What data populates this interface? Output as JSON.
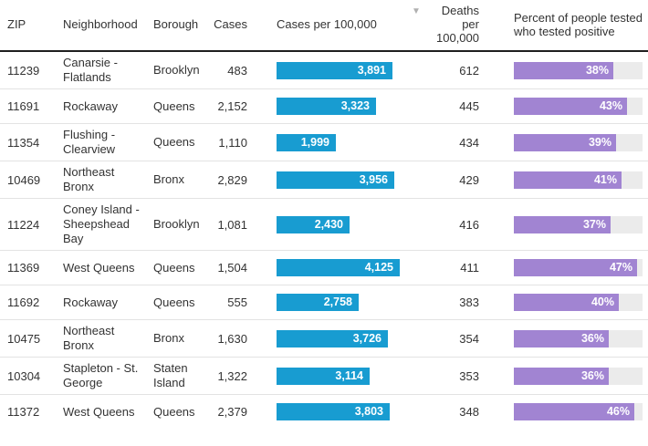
{
  "header": {
    "zip": "ZIP",
    "neighborhood": "Neighborhood",
    "borough": "Borough",
    "cases": "Cases",
    "cases_per_100k": "Cases per 100,000",
    "deaths_line1": "Deaths",
    "deaths_line2": "per 100,000",
    "percent_positive": "Percent of people tested who tested positive",
    "sort_icon": "▼",
    "sorted_column": "Deaths per 100,000",
    "sort_direction": "descending"
  },
  "chart_data": {
    "type": "table",
    "columns": [
      "ZIP",
      "Neighborhood",
      "Borough",
      "Cases",
      "Cases per 100,000",
      "Deaths per 100,000",
      "Percent of people tested who tested positive"
    ],
    "embedded_bars": [
      {
        "column": "Cases per 100,000",
        "type": "bar",
        "color": "#189cd1",
        "axis_max": 4125
      },
      {
        "column": "Percent of people tested who tested positive",
        "type": "bar",
        "color": "#a184d2",
        "track_color": "#ebebeb",
        "axis_max": 49
      }
    ],
    "rows": [
      {
        "zip": "11239",
        "neighborhood": "Canarsie - Flatlands",
        "borough": "Brooklyn",
        "cases_label": "483",
        "cases": 483,
        "cases_per_100k": 3891,
        "cases_per_100k_label": "3,891",
        "deaths_per_100k": 612,
        "deaths_label": "612",
        "percent_positive": 38,
        "percent_label": "38%"
      },
      {
        "zip": "11691",
        "neighborhood": "Rockaway",
        "borough": "Queens",
        "cases_label": "2,152",
        "cases": 2152,
        "cases_per_100k": 3323,
        "cases_per_100k_label": "3,323",
        "deaths_per_100k": 445,
        "deaths_label": "445",
        "percent_positive": 43,
        "percent_label": "43%"
      },
      {
        "zip": "11354",
        "neighborhood": "Flushing - Clearview",
        "borough": "Queens",
        "cases_label": "1,110",
        "cases": 1110,
        "cases_per_100k": 1999,
        "cases_per_100k_label": "1,999",
        "deaths_per_100k": 434,
        "deaths_label": "434",
        "percent_positive": 39,
        "percent_label": "39%"
      },
      {
        "zip": "10469",
        "neighborhood": "Northeast Bronx",
        "borough": "Bronx",
        "cases_label": "2,829",
        "cases": 2829,
        "cases_per_100k": 3956,
        "cases_per_100k_label": "3,956",
        "deaths_per_100k": 429,
        "deaths_label": "429",
        "percent_positive": 41,
        "percent_label": "41%"
      },
      {
        "zip": "11224",
        "neighborhood": "Coney Island - Sheepshead Bay",
        "borough": "Brooklyn",
        "cases_label": "1,081",
        "cases": 1081,
        "cases_per_100k": 2430,
        "cases_per_100k_label": "2,430",
        "deaths_per_100k": 416,
        "deaths_label": "416",
        "percent_positive": 37,
        "percent_label": "37%"
      },
      {
        "zip": "11369",
        "neighborhood": "West Queens",
        "borough": "Queens",
        "cases_label": "1,504",
        "cases": 1504,
        "cases_per_100k": 4125,
        "cases_per_100k_label": "4,125",
        "deaths_per_100k": 411,
        "deaths_label": "411",
        "percent_positive": 47,
        "percent_label": "47%"
      },
      {
        "zip": "11692",
        "neighborhood": "Rockaway",
        "borough": "Queens",
        "cases_label": "555",
        "cases": 555,
        "cases_per_100k": 2758,
        "cases_per_100k_label": "2,758",
        "deaths_per_100k": 383,
        "deaths_label": "383",
        "percent_positive": 40,
        "percent_label": "40%"
      },
      {
        "zip": "10475",
        "neighborhood": "Northeast Bronx",
        "borough": "Bronx",
        "cases_label": "1,630",
        "cases": 1630,
        "cases_per_100k": 3726,
        "cases_per_100k_label": "3,726",
        "deaths_per_100k": 354,
        "deaths_label": "354",
        "percent_positive": 36,
        "percent_label": "36%"
      },
      {
        "zip": "10304",
        "neighborhood": "Stapleton - St. George",
        "borough": "Staten Island",
        "cases_label": "1,322",
        "cases": 1322,
        "cases_per_100k": 3114,
        "cases_per_100k_label": "3,114",
        "deaths_per_100k": 353,
        "deaths_label": "353",
        "percent_positive": 36,
        "percent_label": "36%"
      },
      {
        "zip": "11372",
        "neighborhood": "West Queens",
        "borough": "Queens",
        "cases_label": "2,379",
        "cases": 2379,
        "cases_per_100k": 3803,
        "cases_per_100k_label": "3,803",
        "deaths_per_100k": 348,
        "deaths_label": "348",
        "percent_positive": 46,
        "percent_label": "46%"
      }
    ]
  }
}
